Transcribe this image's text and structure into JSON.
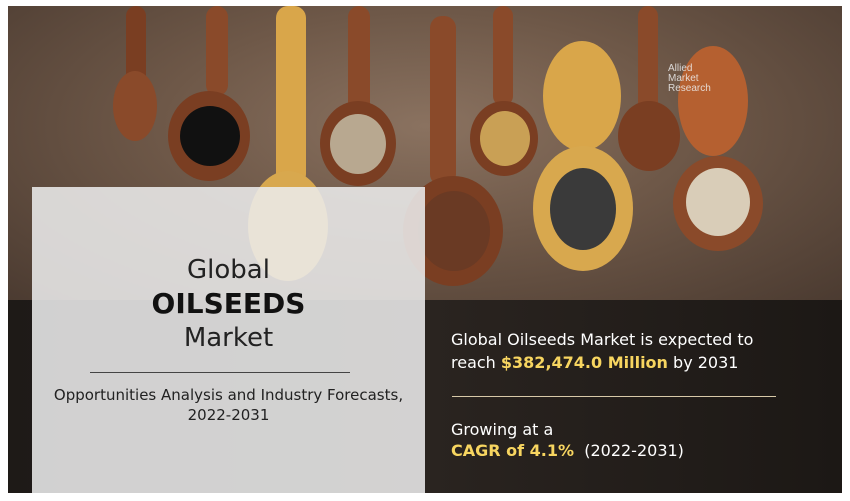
{
  "logo": {
    "lines": [
      "Allied",
      "Market",
      "Research"
    ]
  },
  "left_panel": {
    "title_line1": "Global",
    "title_line2": "OILSEEDS",
    "title_line3": "Market",
    "subtitle_line1": "Opportunities Analysis and Industry Forecasts,",
    "subtitle_line2": "2022-2031"
  },
  "right_panel": {
    "stat1_line1": "Global Oilseeds Market is expected to",
    "stat1_prefix": "reach",
    "stat1_value": "$382,474.0 Million",
    "stat1_suffix": "by 2031",
    "stat2_line1": "Growing at a",
    "stat2_value": "CAGR of 4.1%",
    "stat2_period": "(2022-2031)"
  },
  "colors": {
    "highlight": "#f7d560",
    "dark_band": "#221d19",
    "panel": "#ebebeb"
  }
}
